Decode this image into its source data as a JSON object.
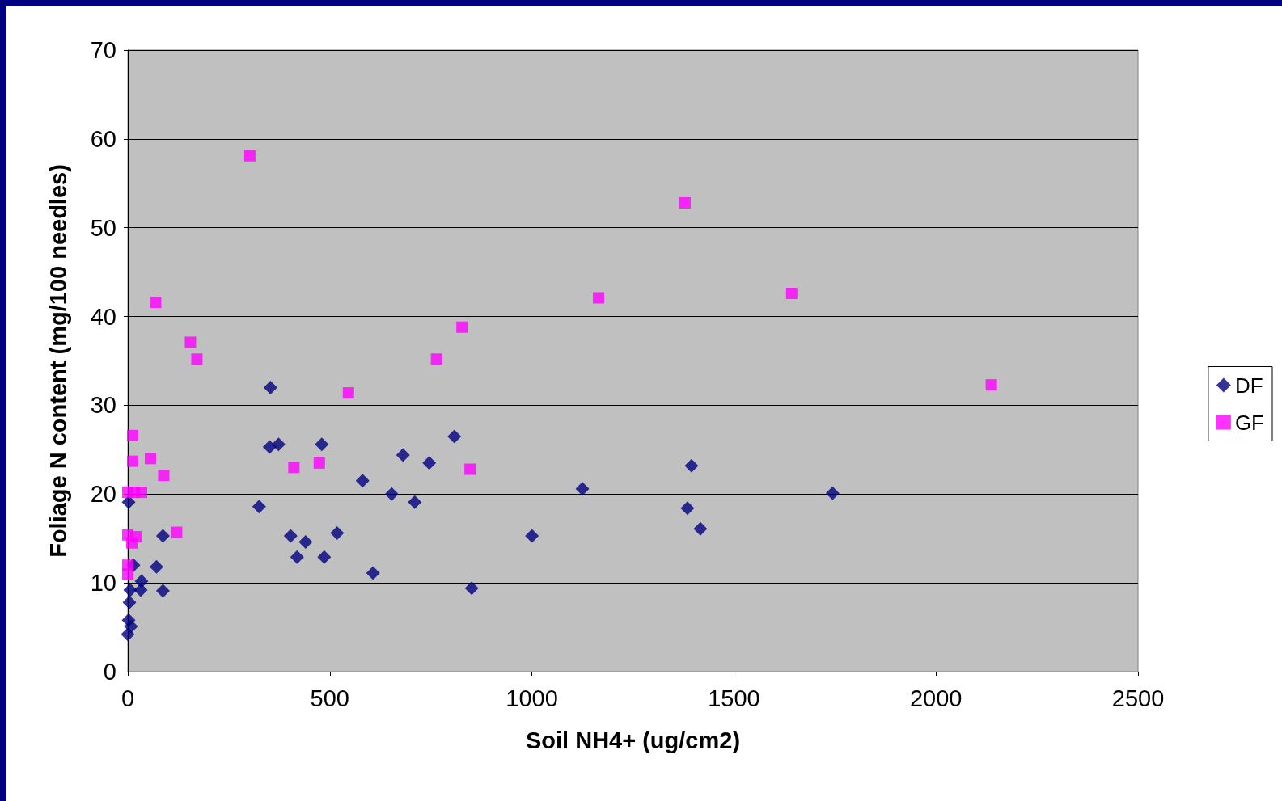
{
  "chart_data": {
    "type": "scatter",
    "xlabel": "Soil NH4+ (ug/cm2)",
    "ylabel": "Foliage N content (mg/100 needles)",
    "xlim": [
      0,
      2500
    ],
    "xticks": [
      0,
      500,
      1000,
      1500,
      2000,
      2500
    ],
    "ylim": [
      0,
      70
    ],
    "yticks": [
      0,
      10,
      20,
      30,
      40,
      50,
      60,
      70
    ],
    "grid": "y",
    "legend": "right",
    "series": [
      {
        "name": "DF",
        "color": "#000080",
        "marker": "diamond",
        "x": [
          2,
          353,
          351,
          373,
          480,
          325,
          403,
          419,
          440,
          486,
          518,
          581,
          607,
          653,
          681,
          710,
          746,
          808,
          851,
          1000,
          1125,
          1385,
          1395,
          1417,
          1744,
          87,
          71,
          87,
          14,
          34,
          32,
          6,
          4,
          2,
          8,
          0
        ],
        "values": [
          19.1,
          32,
          25.3,
          25.6,
          25.6,
          18.6,
          15.3,
          12.9,
          14.6,
          12.9,
          15.6,
          21.5,
          11.1,
          20,
          24.4,
          19.1,
          23.5,
          26.5,
          9.4,
          15.3,
          20.6,
          18.4,
          23.2,
          16.1,
          20.1,
          15.3,
          11.8,
          9.1,
          12,
          10.2,
          9.2,
          9.2,
          7.8,
          5.8,
          5.1,
          4.2
        ]
      },
      {
        "name": "GF",
        "color": "#ff00ff",
        "marker": "square",
        "x": [
          302,
          1379,
          69,
          1165,
          1643,
          155,
          171,
          827,
          764,
          546,
          2137,
          12,
          12,
          56,
          89,
          411,
          474,
          847,
          0,
          17,
          34,
          121,
          0,
          20,
          10,
          0,
          0
        ],
        "values": [
          58.1,
          52.8,
          41.6,
          42.1,
          42.6,
          37.1,
          35.2,
          38.8,
          35.2,
          31.4,
          32.3,
          26.6,
          23.7,
          24,
          22.1,
          23,
          23.5,
          22.8,
          20.2,
          20.2,
          20.2,
          15.7,
          15.4,
          15.2,
          14.5,
          12,
          11
        ]
      }
    ]
  }
}
